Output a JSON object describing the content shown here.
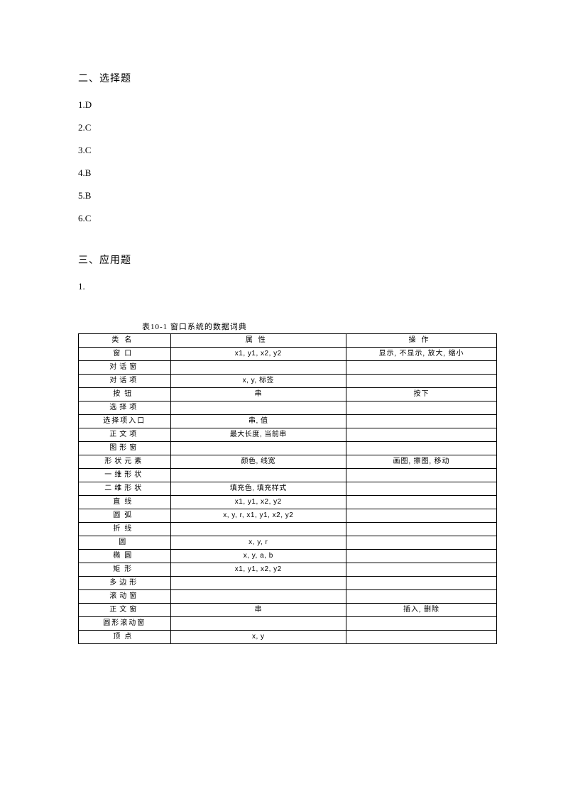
{
  "section1": {
    "title": "二、选择题",
    "answers": [
      "1.D",
      "2.C",
      "3.C",
      "4.B",
      "5.B",
      "6.C"
    ]
  },
  "section2": {
    "title": "三、应用题",
    "item": "1."
  },
  "table": {
    "caption": "表10-1 窗口系统的数据词典",
    "headers": {
      "name": "类名",
      "attr": "属性",
      "op": "操作"
    },
    "rows": [
      {
        "name": "窗口",
        "attr": "x1, y1, x2, y2",
        "op": "显示, 不显示, 放大, 缩小"
      },
      {
        "name": "对话窗",
        "attr": "",
        "op": ""
      },
      {
        "name": "对话项",
        "attr": "x, y, 标签",
        "op": ""
      },
      {
        "name": "按钮",
        "attr": "串",
        "op": "按下"
      },
      {
        "name": "选择项",
        "attr": "",
        "op": ""
      },
      {
        "name": "选择项入口",
        "attr": "串, 值",
        "op": ""
      },
      {
        "name": "正文项",
        "attr": "最大长度, 当前串",
        "op": ""
      },
      {
        "name": "图形窗",
        "attr": "",
        "op": ""
      },
      {
        "name": "形状元素",
        "attr": "颜色, 线宽",
        "op": "画图, 擦图, 移动"
      },
      {
        "name": "一维形状",
        "attr": "",
        "op": ""
      },
      {
        "name": "二维形状",
        "attr": "填充色, 填充样式",
        "op": ""
      },
      {
        "name": "直线",
        "attr": "x1, y1, x2, y2",
        "op": ""
      },
      {
        "name": "圆弧",
        "attr": "x, y, r, x1, y1, x2, y2",
        "op": ""
      },
      {
        "name": "折线",
        "attr": "",
        "op": ""
      },
      {
        "name": "圆",
        "attr": "x, y, r",
        "op": ""
      },
      {
        "name": "椭圆",
        "attr": "x, y, a, b",
        "op": ""
      },
      {
        "name": "矩形",
        "attr": "x1, y1, x2, y2",
        "op": ""
      },
      {
        "name": "多边形",
        "attr": "",
        "op": ""
      },
      {
        "name": "滚动窗",
        "attr": "",
        "op": ""
      },
      {
        "name": "正文窗",
        "attr": "串",
        "op": "插入, 删除"
      },
      {
        "name": "圆形滚动窗",
        "attr": "",
        "op": ""
      },
      {
        "name": "顶点",
        "attr": "x, y",
        "op": ""
      }
    ]
  }
}
